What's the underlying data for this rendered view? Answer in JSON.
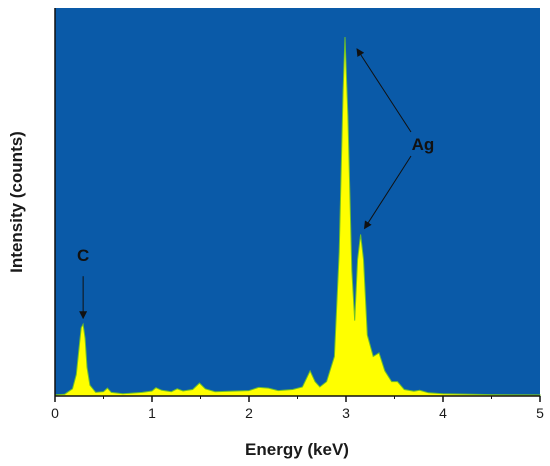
{
  "chart_data": {
    "type": "area",
    "title": "",
    "xlabel": "Energy (keV)",
    "ylabel": "Intensity (counts)",
    "xlim": [
      0,
      5
    ],
    "ylim": [
      0,
      100
    ],
    "x_ticks": [
      "0",
      "1",
      "2",
      "3",
      "4",
      "5"
    ],
    "grid": false,
    "legend": "none",
    "y_tick_labels": false,
    "colors": {
      "plot_background": "#0a5aa8",
      "spectrum_fill": "#ffff00",
      "spectrum_edge": "#6fbf2a",
      "axis": "#111111",
      "arrow": "#111111"
    },
    "series": [
      {
        "points": [
          [
            0.0,
            0.3
          ],
          [
            0.1,
            0.5
          ],
          [
            0.18,
            2.0
          ],
          [
            0.22,
            6.0
          ],
          [
            0.25,
            14.0
          ],
          [
            0.27,
            19.0
          ],
          [
            0.29,
            20.0
          ],
          [
            0.31,
            16.0
          ],
          [
            0.33,
            8.0
          ],
          [
            0.36,
            3.0
          ],
          [
            0.42,
            1.0
          ],
          [
            0.5,
            1.2
          ],
          [
            0.54,
            2.2
          ],
          [
            0.58,
            1.0
          ],
          [
            0.7,
            0.6
          ],
          [
            0.9,
            1.0
          ],
          [
            1.0,
            1.4
          ],
          [
            1.04,
            2.3
          ],
          [
            1.1,
            1.6
          ],
          [
            1.2,
            1.2
          ],
          [
            1.26,
            2.0
          ],
          [
            1.32,
            1.4
          ],
          [
            1.42,
            1.8
          ],
          [
            1.49,
            3.6
          ],
          [
            1.55,
            2.0
          ],
          [
            1.65,
            1.2
          ],
          [
            1.8,
            1.3
          ],
          [
            2.0,
            1.5
          ],
          [
            2.1,
            2.4
          ],
          [
            2.2,
            2.2
          ],
          [
            2.3,
            1.5
          ],
          [
            2.45,
            1.8
          ],
          [
            2.55,
            2.5
          ],
          [
            2.63,
            7.0
          ],
          [
            2.68,
            4.0
          ],
          [
            2.73,
            2.5
          ],
          [
            2.8,
            4.0
          ],
          [
            2.88,
            11.0
          ],
          [
            2.93,
            40.0
          ],
          [
            2.97,
            85.0
          ],
          [
            2.99,
            100.0
          ],
          [
            3.02,
            78.0
          ],
          [
            3.06,
            35.0
          ],
          [
            3.09,
            21.0
          ],
          [
            3.12,
            38.0
          ],
          [
            3.15,
            45.0
          ],
          [
            3.18,
            38.0
          ],
          [
            3.22,
            17.0
          ],
          [
            3.28,
            11.0
          ],
          [
            3.34,
            12.0
          ],
          [
            3.4,
            7.0
          ],
          [
            3.47,
            4.0
          ],
          [
            3.53,
            4.0
          ],
          [
            3.6,
            1.8
          ],
          [
            3.7,
            1.3
          ],
          [
            3.76,
            1.6
          ],
          [
            3.85,
            0.9
          ],
          [
            4.0,
            0.6
          ],
          [
            4.5,
            0.4
          ],
          [
            5.0,
            0.3
          ]
        ]
      }
    ],
    "annotations": [
      {
        "text": "C",
        "peak_x": 0.29,
        "peak_y": 20.0
      },
      {
        "text": "Ag",
        "peaks": [
          {
            "x": 2.99,
            "y": 100.0
          },
          {
            "x": 3.15,
            "y": 45.0
          }
        ]
      }
    ]
  }
}
